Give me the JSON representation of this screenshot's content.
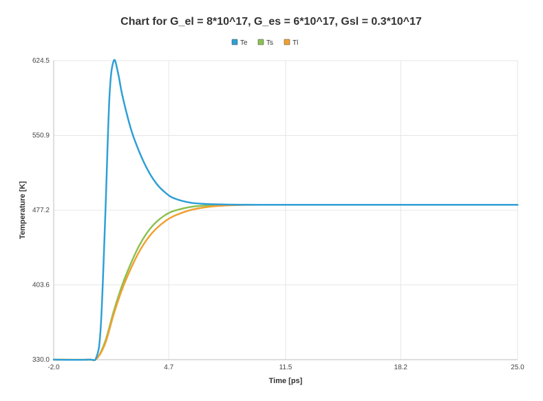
{
  "chart_data": {
    "type": "line",
    "title": "Chart for G_el = 8*10^17, G_es = 6*10^17, Gsl = 0.3*10^17",
    "xlabel": "Time [ps]",
    "ylabel": "Temperature [K]",
    "xlim": [
      -2.0,
      25.0
    ],
    "ylim": [
      330.0,
      624.5
    ],
    "xticks": [
      "-2.0",
      "4.7",
      "11.5",
      "18.2",
      "25.0"
    ],
    "yticks": [
      "330.0",
      "403.6",
      "477.2",
      "550.9",
      "624.5"
    ],
    "grid": true,
    "legend_position": "top-center",
    "series": [
      {
        "name": "Te",
        "color": "#2f9fd6",
        "x": [
          -2.0,
          0.0,
          0.5,
          0.75,
          1.0,
          1.25,
          1.5,
          1.75,
          2.0,
          2.5,
          3.0,
          3.5,
          4.0,
          4.5,
          5.0,
          6.0,
          7.0,
          8.0,
          9.0,
          10.0,
          12.0,
          15.0,
          20.0,
          25.0
        ],
        "y": [
          330.0,
          330.0,
          333.0,
          365.0,
          470.0,
          590.0,
          624.5,
          612.0,
          590.0,
          557.0,
          534.0,
          516.0,
          503.0,
          494.5,
          489.0,
          484.5,
          483.3,
          482.8,
          482.6,
          482.5,
          482.5,
          482.5,
          482.5,
          482.5
        ]
      },
      {
        "name": "Ts",
        "color": "#8cc152",
        "x": [
          -2.0,
          0.0,
          0.5,
          1.0,
          1.5,
          2.0,
          2.5,
          3.0,
          3.5,
          4.0,
          4.5,
          5.0,
          6.0,
          7.0,
          8.0,
          9.0,
          10.0,
          12.0,
          15.0,
          20.0,
          25.0
        ],
        "y": [
          330.0,
          330.0,
          331.0,
          348.0,
          378.0,
          404.0,
          425.0,
          443.0,
          456.5,
          466.0,
          472.5,
          476.5,
          480.5,
          482.0,
          482.4,
          482.5,
          482.5,
          482.5,
          482.5,
          482.5,
          482.5
        ]
      },
      {
        "name": "Tl",
        "color": "#f0a030",
        "x": [
          -2.0,
          0.0,
          0.5,
          1.0,
          1.5,
          2.0,
          2.5,
          3.0,
          3.5,
          4.0,
          4.5,
          5.0,
          6.0,
          7.0,
          8.0,
          9.0,
          10.0,
          12.0,
          15.0,
          20.0,
          25.0
        ],
        "y": [
          330.0,
          330.0,
          331.0,
          346.0,
          375.0,
          400.0,
          420.0,
          437.0,
          450.0,
          459.5,
          466.5,
          471.5,
          477.5,
          480.5,
          481.8,
          482.3,
          482.5,
          482.5,
          482.5,
          482.5,
          482.5
        ]
      }
    ]
  }
}
